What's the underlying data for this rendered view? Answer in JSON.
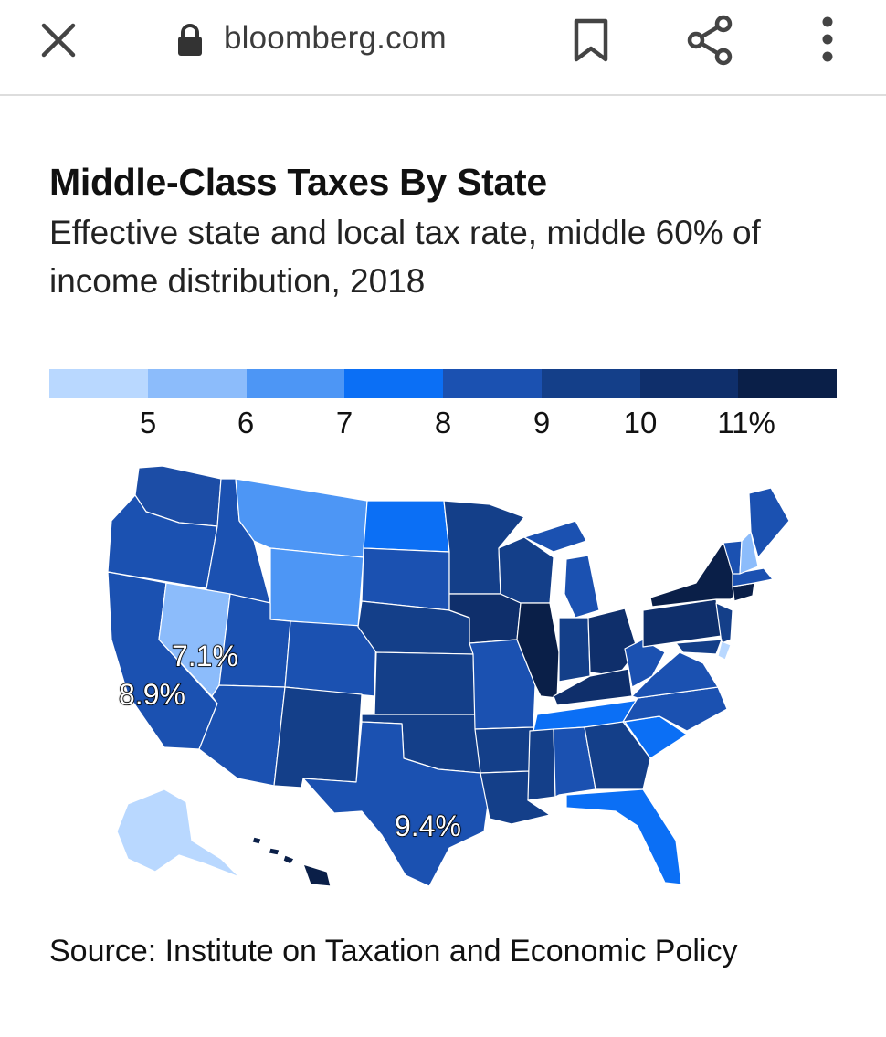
{
  "browser": {
    "url": "bloomberg.com"
  },
  "chart": {
    "title": "Middle-Class Taxes By State",
    "subtitle": "Effective state and local tax rate, middle 60% of income distribution, 2018",
    "source": "Source: Institute on Taxation and Economic Policy"
  },
  "legend": {
    "colors": [
      "#b9d8ff",
      "#8cbcfb",
      "#4d96f5",
      "#0b6ff5",
      "#1b51b1",
      "#143f89",
      "#0f2f6b",
      "#0a1f48"
    ],
    "ticks": [
      "5",
      "6",
      "7",
      "8",
      "9",
      "10",
      "11%"
    ]
  },
  "map_labels": {
    "nevada": "7.1%",
    "california": "8.9%",
    "texas": "9.4%"
  },
  "chart_data": {
    "type": "map",
    "title": "Middle-Class Taxes By State",
    "subtitle": "Effective state and local tax rate, middle 60% of income distribution, 2018",
    "scale_ticks": [
      5,
      6,
      7,
      8,
      9,
      10,
      11
    ],
    "unit": "%",
    "labeled_values": [
      {
        "state": "Nevada",
        "value": 7.1
      },
      {
        "state": "California",
        "value": 8.9
      },
      {
        "state": "Texas",
        "value": 9.4
      }
    ]
  }
}
